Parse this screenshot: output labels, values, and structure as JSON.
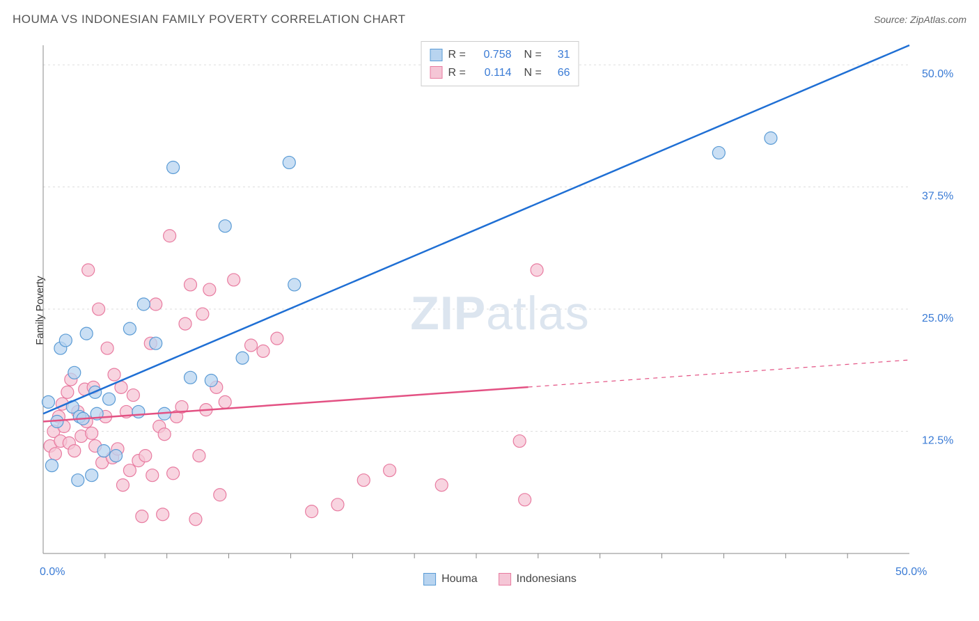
{
  "title": "HOUMA VS INDONESIAN FAMILY POVERTY CORRELATION CHART",
  "source": "Source: ZipAtlas.com",
  "y_axis_label": "Family Poverty",
  "watermark": {
    "part1": "ZIP",
    "part2": "atlas"
  },
  "chart": {
    "type": "scatter-with-regression",
    "xlim": [
      0,
      50
    ],
    "ylim": [
      0,
      52
    ],
    "x_min_label": "0.0%",
    "x_max_label": "50.0%",
    "y_ticks": [
      12.5,
      25.0,
      37.5,
      50.0
    ],
    "y_tick_labels": [
      "12.5%",
      "25.0%",
      "37.5%",
      "50.0%"
    ],
    "x_minor_ticks": [
      3.57,
      7.14,
      10.71,
      14.29,
      17.86,
      21.43,
      25.0,
      28.57,
      32.14,
      35.71,
      39.29,
      42.86,
      46.43
    ],
    "background_color": "#ffffff",
    "grid_color": "#dddddd",
    "axis_color": "#888888",
    "marker_radius": 9,
    "marker_stroke_width": 1.2,
    "line_width": 2.5,
    "series": [
      {
        "name": "Houma",
        "fill_color": "#b8d4f0",
        "stroke_color": "#5a9bd5",
        "line_color": "#1f6fd4",
        "r": "0.758",
        "n": "31",
        "regression": {
          "x1": 0,
          "y1": 14.3,
          "x2": 50,
          "y2": 52,
          "dashed_from": null
        },
        "points": [
          [
            0.3,
            15.5
          ],
          [
            0.5,
            9.0
          ],
          [
            0.8,
            13.5
          ],
          [
            1.0,
            21.0
          ],
          [
            1.3,
            21.8
          ],
          [
            1.7,
            15.0
          ],
          [
            1.8,
            18.5
          ],
          [
            2.1,
            14.0
          ],
          [
            2.3,
            13.8
          ],
          [
            2.5,
            22.5
          ],
          [
            2.8,
            8.0
          ],
          [
            3.0,
            16.5
          ],
          [
            3.1,
            14.3
          ],
          [
            3.5,
            10.5
          ],
          [
            3.8,
            15.8
          ],
          [
            4.2,
            10.0
          ],
          [
            5.0,
            23.0
          ],
          [
            5.5,
            14.5
          ],
          [
            5.8,
            25.5
          ],
          [
            6.5,
            21.5
          ],
          [
            7.0,
            14.3
          ],
          [
            7.5,
            39.5
          ],
          [
            8.5,
            18.0
          ],
          [
            9.7,
            17.7
          ],
          [
            10.5,
            33.5
          ],
          [
            11.5,
            20.0
          ],
          [
            14.2,
            40.0
          ],
          [
            14.5,
            27.5
          ],
          [
            39.0,
            41.0
          ],
          [
            42.0,
            42.5
          ],
          [
            2.0,
            7.5
          ]
        ]
      },
      {
        "name": "Indonesians",
        "fill_color": "#f5c6d6",
        "stroke_color": "#e87ba0",
        "line_color": "#e35183",
        "r": "0.114",
        "n": "66",
        "regression": {
          "x1": 0,
          "y1": 13.5,
          "x2": 50,
          "y2": 19.8,
          "dashed_from": 28
        },
        "points": [
          [
            0.4,
            11.0
          ],
          [
            0.6,
            12.5
          ],
          [
            0.7,
            10.2
          ],
          [
            0.9,
            14.0
          ],
          [
            1.0,
            11.5
          ],
          [
            1.1,
            15.3
          ],
          [
            1.2,
            13.0
          ],
          [
            1.4,
            16.5
          ],
          [
            1.5,
            11.3
          ],
          [
            1.6,
            17.8
          ],
          [
            1.8,
            10.5
          ],
          [
            2.0,
            14.5
          ],
          [
            2.2,
            12.0
          ],
          [
            2.4,
            16.8
          ],
          [
            2.5,
            13.5
          ],
          [
            2.6,
            29.0
          ],
          [
            2.8,
            12.3
          ],
          [
            2.9,
            17.0
          ],
          [
            3.0,
            11.0
          ],
          [
            3.2,
            25.0
          ],
          [
            3.4,
            9.3
          ],
          [
            3.6,
            14.0
          ],
          [
            3.7,
            21.0
          ],
          [
            4.0,
            9.8
          ],
          [
            4.3,
            10.7
          ],
          [
            4.5,
            17.0
          ],
          [
            4.6,
            7.0
          ],
          [
            4.8,
            14.5
          ],
          [
            5.0,
            8.5
          ],
          [
            5.2,
            16.2
          ],
          [
            5.5,
            9.5
          ],
          [
            5.7,
            3.8
          ],
          [
            5.9,
            10.0
          ],
          [
            6.2,
            21.5
          ],
          [
            6.3,
            8.0
          ],
          [
            6.5,
            25.5
          ],
          [
            6.7,
            13.0
          ],
          [
            6.9,
            4.0
          ],
          [
            7.0,
            12.2
          ],
          [
            7.3,
            32.5
          ],
          [
            7.5,
            8.2
          ],
          [
            7.7,
            14.0
          ],
          [
            8.0,
            15.0
          ],
          [
            8.2,
            23.5
          ],
          [
            8.5,
            27.5
          ],
          [
            8.8,
            3.5
          ],
          [
            9.0,
            10.0
          ],
          [
            9.2,
            24.5
          ],
          [
            9.4,
            14.7
          ],
          [
            9.6,
            27.0
          ],
          [
            10.0,
            17.0
          ],
          [
            10.2,
            6.0
          ],
          [
            10.5,
            15.5
          ],
          [
            11.0,
            28.0
          ],
          [
            12.0,
            21.3
          ],
          [
            12.7,
            20.7
          ],
          [
            13.5,
            22.0
          ],
          [
            15.5,
            4.3
          ],
          [
            17.0,
            5.0
          ],
          [
            18.5,
            7.5
          ],
          [
            20.0,
            8.5
          ],
          [
            23.0,
            7.0
          ],
          [
            27.5,
            11.5
          ],
          [
            28.5,
            29.0
          ],
          [
            27.8,
            5.5
          ],
          [
            4.1,
            18.3
          ]
        ]
      }
    ],
    "legend_bottom": [
      {
        "label": "Houma",
        "fill": "#b8d4f0",
        "stroke": "#5a9bd5"
      },
      {
        "label": "Indonesians",
        "fill": "#f5c6d6",
        "stroke": "#e87ba0"
      }
    ]
  }
}
